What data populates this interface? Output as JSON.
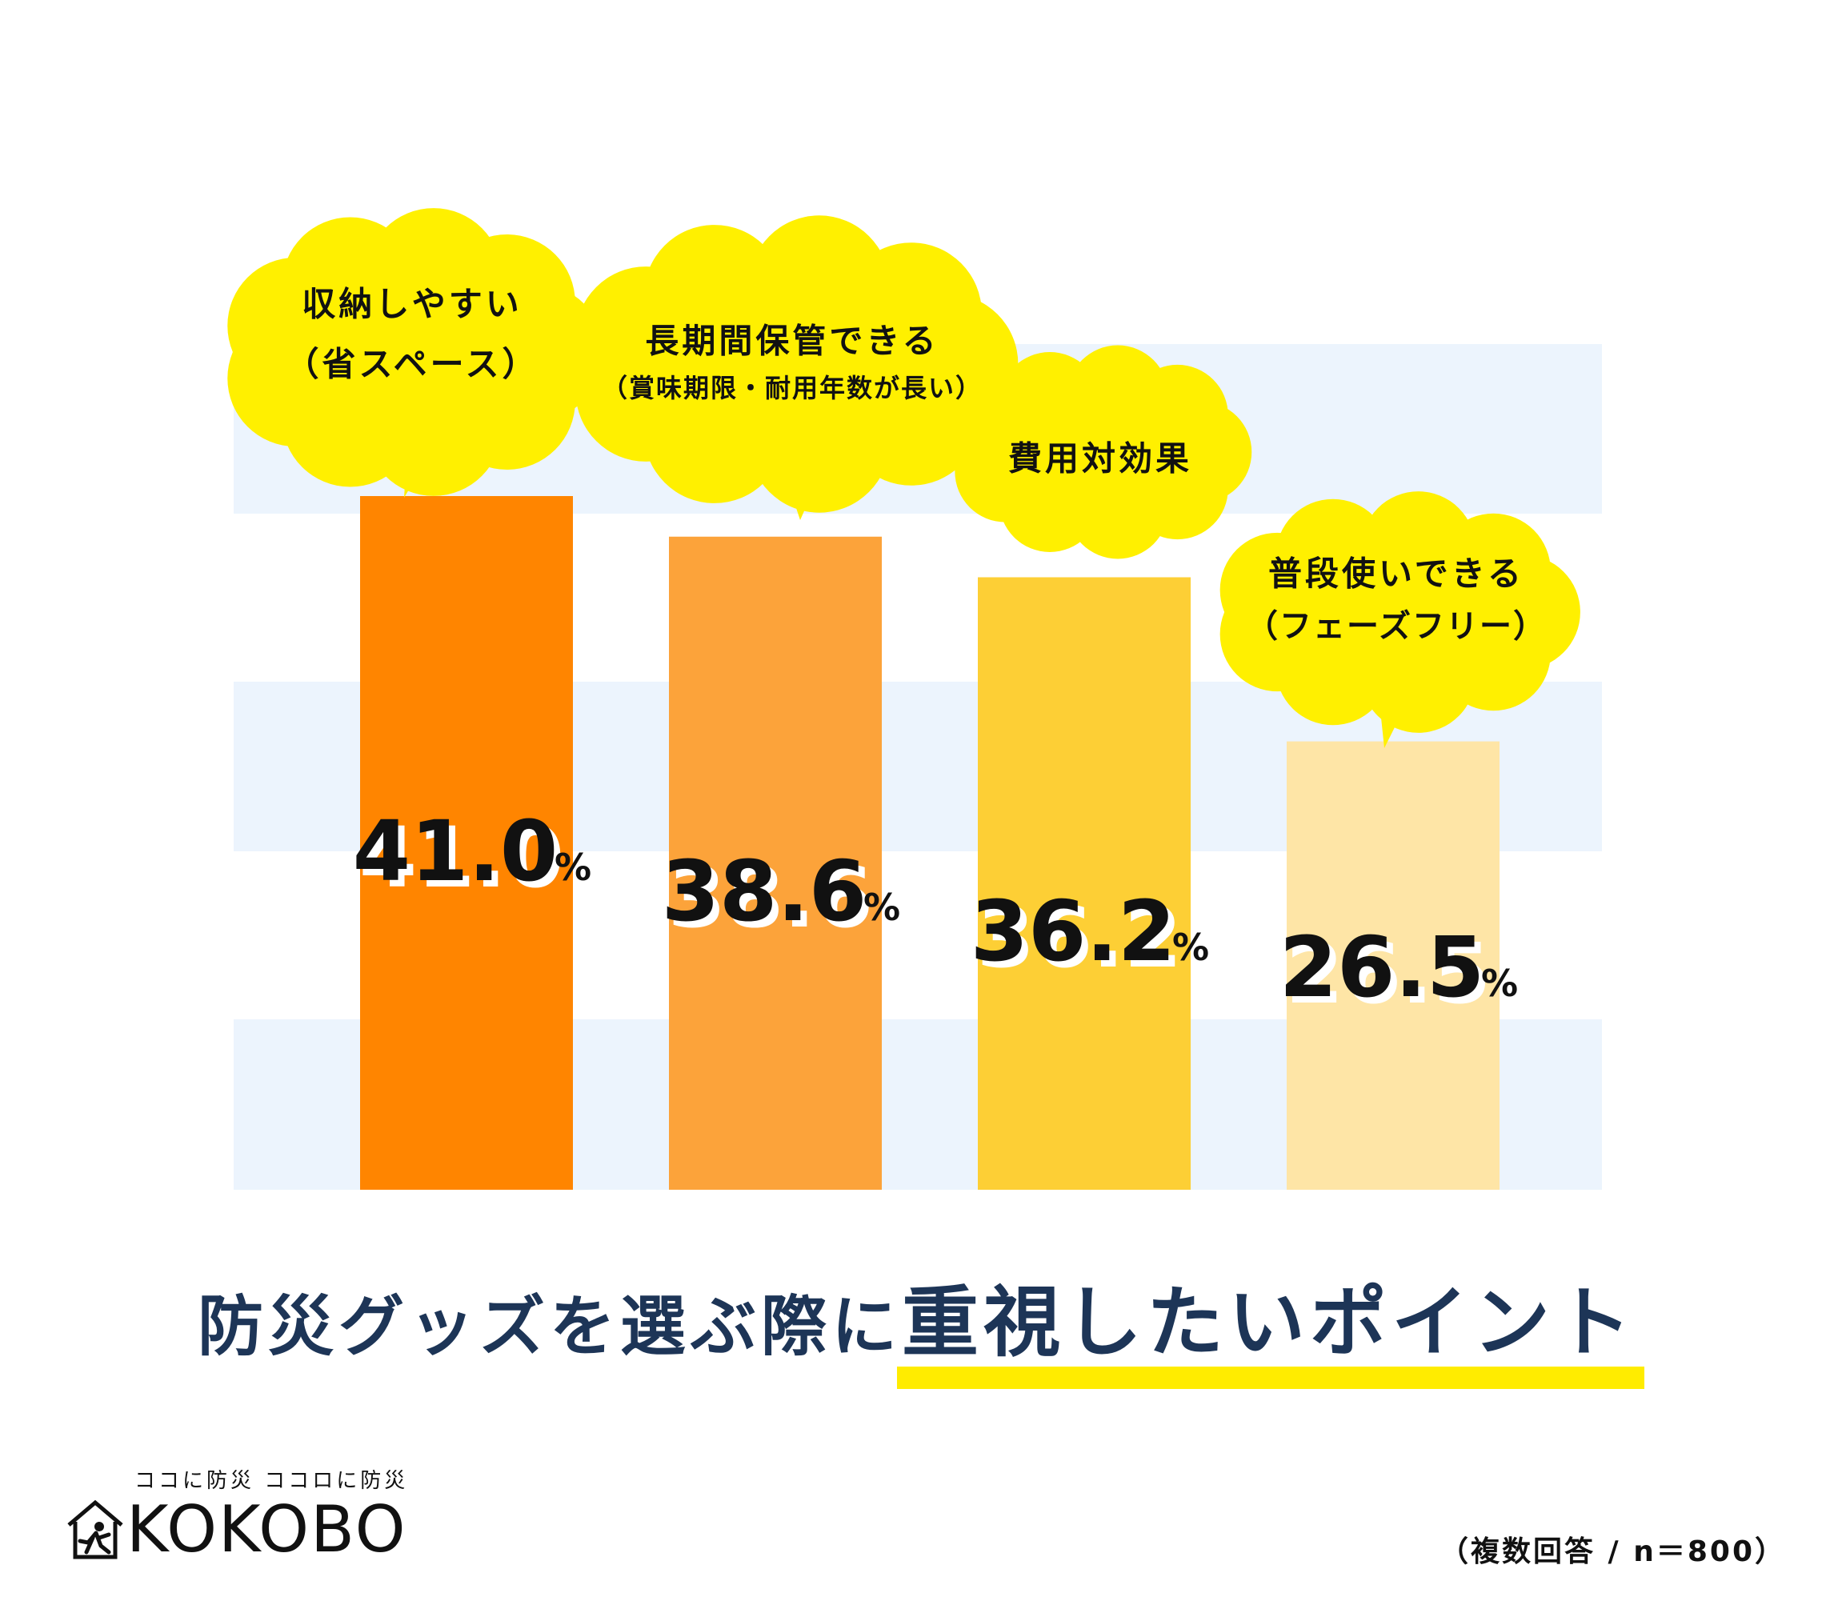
{
  "chart_data": {
    "type": "bar",
    "categories": [
      [
        "収納しやすい",
        "（省スペース）"
      ],
      [
        "長期間保管できる",
        "（賞味期限・耐用年数が長い）"
      ],
      [
        "費用対効果"
      ],
      [
        "普段使いできる",
        "（フェーズフリー）"
      ]
    ],
    "values": [
      41.0,
      38.6,
      36.2,
      26.5
    ],
    "value_labels": [
      "41.0",
      "38.6",
      "36.2",
      "26.5"
    ],
    "unit": "%",
    "bar_colors": [
      "#ff8500",
      "#fca33a",
      "#fdcf35",
      "#fee5a6"
    ],
    "ylim": [
      0,
      41
    ],
    "grid": "horizontal stripes",
    "stripe_color": "#ecf4fd",
    "bubble_color": "#fff000"
  },
  "title": {
    "plain": "防災グッズを選ぶ際に",
    "emphasis": "重視したいポイント"
  },
  "note": "（複数回答 / n＝800）",
  "logo": {
    "tagline": "ココに防災 ココロに防災",
    "wordmark": "KOKOBO",
    "icon": "house-runner-icon"
  }
}
